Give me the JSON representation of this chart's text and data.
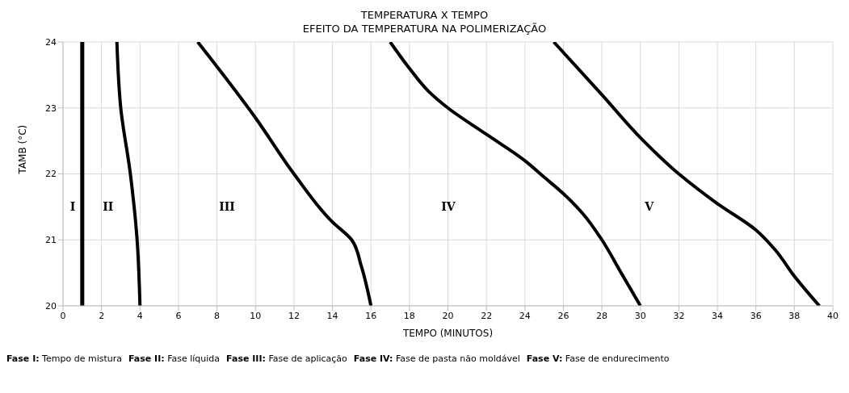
{
  "chart_data": {
    "type": "line",
    "title": "TEMPERATURA X TEMPO",
    "subtitle": "EFEITO DA TEMPERATURA NA POLIMERIZAÇÃO",
    "xlabel": "TEMPO (MINUTOS)",
    "ylabel": "TAMB (°C)",
    "xlim": [
      0,
      40
    ],
    "xticks": [
      0,
      2,
      4,
      6,
      8,
      10,
      12,
      14,
      16,
      18,
      20,
      22,
      24,
      26,
      28,
      30,
      32,
      34,
      36,
      38,
      40
    ],
    "ylim": [
      20,
      24
    ],
    "yticks": [
      20,
      21,
      22,
      23,
      24
    ],
    "grid": true,
    "legend": false,
    "marker": "none",
    "line_style": "solid",
    "series": [
      {
        "color": "#000000",
        "x": [
          1,
          1
        ],
        "values": [
          20,
          24
        ]
      },
      {
        "color": "#000000",
        "x": [
          4,
          3.85,
          3.5,
          3.0,
          2.8
        ],
        "values": [
          20,
          21,
          22,
          23,
          24
        ]
      },
      {
        "color": "#000000",
        "x": [
          16,
          15.5,
          15,
          14,
          12,
          10,
          7
        ],
        "values": [
          20,
          20.6,
          21,
          21.27,
          22,
          22.85,
          24
        ]
      },
      {
        "color": "#000000",
        "x": [
          30,
          29,
          28,
          27,
          26,
          25,
          24,
          22,
          20,
          19,
          18,
          17
        ],
        "values": [
          20,
          20.5,
          21,
          21.4,
          21.7,
          21.95,
          22.2,
          22.6,
          23,
          23.25,
          23.6,
          24
        ]
      },
      {
        "color": "#000000",
        "x": [
          39.3,
          38,
          37,
          36,
          34,
          32,
          30,
          28,
          25.5
        ],
        "values": [
          20,
          20.45,
          20.85,
          21.15,
          21.55,
          22,
          22.55,
          23.2,
          24
        ]
      }
    ],
    "annotations": [
      "I",
      "II",
      "III",
      "IV",
      "V",
      "Fase I: Tempo de mistura",
      "Fase II: Fase líquida",
      "Fase III: Fase de aplicação",
      "Fase IV: Fase de pasta não moldável",
      "Fase V: Fase de endurecimento"
    ]
  }
}
